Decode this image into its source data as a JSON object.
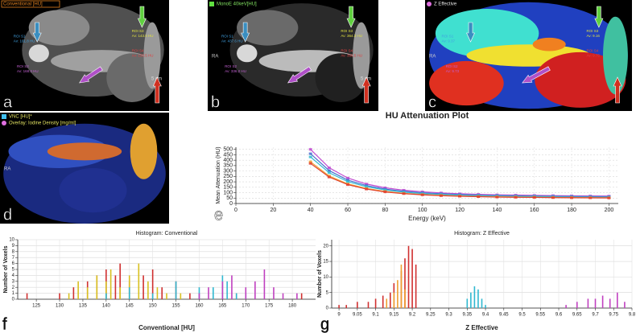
{
  "panels": [
    {
      "label": "a",
      "header": "Conventional [HU]",
      "scale": "5 cm",
      "rois": [
        {
          "name": "ROI S1",
          "value": "Av: 161.8 HU"
        },
        {
          "name": "ROI S2",
          "value": "Av: 168.3 HU"
        },
        {
          "name": "ROI S3",
          "value": "Av: 143.5 HU"
        },
        {
          "name": "ROI S4",
          "value": "Av: 150.5 HU"
        }
      ]
    },
    {
      "label": "b",
      "header": "MonoE 40keV[HU]",
      "side": "RA",
      "scale": "5 cm",
      "rois": [
        {
          "name": "ROI S1",
          "value": "Av: 437.6 HU"
        },
        {
          "name": "ROI S2",
          "value": "Av: 336.2 HU"
        },
        {
          "name": "ROI S3",
          "value": "Av: 364.3 HU"
        },
        {
          "name": "ROI S4",
          "value": "Av: 369.5 HU"
        }
      ]
    },
    {
      "label": "c",
      "header": "Z Effective",
      "side": "RA",
      "rois": [
        {
          "name": "ROI S1",
          "value": "Av: 9.37"
        },
        {
          "name": "ROI S2",
          "value": "Av: 9.73"
        },
        {
          "name": "ROI S3",
          "value": "Av: 9.16"
        },
        {
          "name": "ROI S4",
          "value": "Av: 9.75"
        }
      ]
    },
    {
      "label": "d",
      "header": "VNC [HU]*",
      "header2": "Overlay: Iodine Density [mg/ml]",
      "side": "RA",
      "rois": []
    }
  ],
  "chart_data": [
    {
      "type": "line",
      "label": "e",
      "title": "HU Attenuation Plot",
      "x_label": "Energy (keV)",
      "y_label": "Mean Attenuation (HU)",
      "x": [
        40,
        50,
        60,
        70,
        80,
        90,
        100,
        110,
        120,
        130,
        140,
        150,
        160,
        170,
        180,
        190,
        200
      ],
      "xlim": [
        0,
        205
      ],
      "xticks": [
        0,
        20,
        40,
        60,
        80,
        100,
        120,
        140,
        160,
        180,
        200
      ],
      "ylim": [
        0,
        520
      ],
      "yticks": [
        0,
        50,
        100,
        150,
        200,
        250,
        300,
        350,
        400,
        450,
        500
      ],
      "grid": true,
      "series": [
        {
          "color": "#c04bd0",
          "values": [
            500,
            330,
            235,
            180,
            145,
            123,
            108,
            98,
            90,
            85,
            80,
            78,
            75,
            73,
            71,
            70,
            69
          ]
        },
        {
          "color": "#4a6fd0",
          "values": [
            460,
            304,
            216,
            166,
            133,
            113,
            99,
            90,
            83,
            78,
            74,
            71,
            69,
            67,
            65,
            64,
            63
          ]
        },
        {
          "color": "#35bcd0",
          "values": [
            430,
            284,
            202,
            155,
            125,
            105,
            92,
            84,
            77,
            73,
            69,
            67,
            65,
            62,
            61,
            60,
            59
          ]
        },
        {
          "color": "#f0a030",
          "values": [
            385,
            254,
            181,
            139,
            112,
            94,
            83,
            75,
            69,
            65,
            62,
            60,
            58,
            56,
            55,
            54,
            53
          ]
        },
        {
          "color": "#e04030",
          "values": [
            370,
            244,
            174,
            133,
            107,
            91,
            80,
            72,
            67,
            63,
            59,
            57,
            56,
            54,
            53,
            52,
            51
          ]
        }
      ]
    },
    {
      "type": "histogram",
      "label": "f",
      "title": "Histogram: Conventional",
      "x_label": "Conventional [HU]",
      "y_label": "Number of Voxels",
      "xlim": [
        121,
        185
      ],
      "xticks": [
        125,
        130,
        135,
        140,
        145,
        150,
        155,
        160,
        165,
        170,
        175,
        180
      ],
      "ylim": [
        0,
        10
      ],
      "yticks": [
        0,
        1,
        2,
        3,
        4,
        5,
        6,
        7,
        8,
        9,
        10
      ],
      "grid": true,
      "series": [
        {
          "color": "#d03030",
          "x": [
            123,
            126,
            130,
            133,
            136,
            138,
            140,
            142,
            143,
            145,
            148,
            150,
            152,
            155,
            158,
            163,
            168,
            175,
            182
          ],
          "values": [
            1,
            0,
            1,
            2,
            3,
            4,
            5,
            4,
            6,
            3,
            4,
            5,
            2,
            3,
            1,
            0,
            1,
            0,
            1
          ]
        },
        {
          "color": "#d8c020",
          "x": [
            132,
            134,
            136,
            138,
            140,
            141,
            143,
            145,
            147,
            149,
            151,
            153,
            156
          ],
          "values": [
            1,
            3,
            2,
            4,
            3,
            5,
            2,
            4,
            6,
            3,
            2,
            1,
            1
          ]
        },
        {
          "color": "#30b8d0",
          "x": [
            140,
            145,
            150,
            155,
            160,
            163,
            165,
            166,
            168,
            170
          ],
          "values": [
            1,
            2,
            1,
            3,
            2,
            2,
            4,
            3,
            1,
            1
          ]
        },
        {
          "color": "#c040c0",
          "x": [
            160,
            162,
            165,
            167,
            170,
            172,
            174,
            176,
            178,
            181
          ],
          "values": [
            1,
            2,
            3,
            4,
            2,
            3,
            5,
            2,
            1,
            1
          ]
        }
      ]
    },
    {
      "type": "histogram",
      "label": "g",
      "title": "Histogram: Z Effective",
      "x_label": "Z Effective",
      "y_label": "Number of Voxels",
      "xlim": [
        8.98,
        9.8
      ],
      "xticks": [
        9,
        9.05,
        9.1,
        9.15,
        9.2,
        9.25,
        9.3,
        9.35,
        9.4,
        9.45,
        9.5,
        9.55,
        9.6,
        9.65,
        9.7,
        9.75,
        9.8
      ],
      "ylim": [
        0,
        22
      ],
      "yticks": [
        0,
        5,
        10,
        15,
        20
      ],
      "grid": true,
      "series": [
        {
          "color": "#d03030",
          "x": [
            9.0,
            9.02,
            9.05,
            9.08,
            9.1,
            9.12,
            9.14,
            9.15,
            9.17,
            9.18,
            9.19,
            9.2,
            9.21
          ],
          "values": [
            1,
            1,
            2,
            2,
            3,
            4,
            5,
            8,
            12,
            16,
            20,
            19,
            14
          ]
        },
        {
          "color": "#f0a030",
          "x": [
            9.13,
            9.15,
            9.16,
            9.17,
            9.18
          ],
          "values": [
            3,
            5,
            9,
            14,
            6
          ]
        },
        {
          "color": "#30b8d0",
          "x": [
            9.35,
            9.36,
            9.37,
            9.38,
            9.39,
            9.4
          ],
          "values": [
            3,
            5,
            7,
            6,
            3,
            1
          ]
        },
        {
          "color": "#c040c0",
          "x": [
            9.62,
            9.65,
            9.68,
            9.7,
            9.72,
            9.74,
            9.76,
            9.78
          ],
          "values": [
            1,
            2,
            3,
            3,
            4,
            3,
            5,
            2
          ]
        }
      ]
    }
  ]
}
